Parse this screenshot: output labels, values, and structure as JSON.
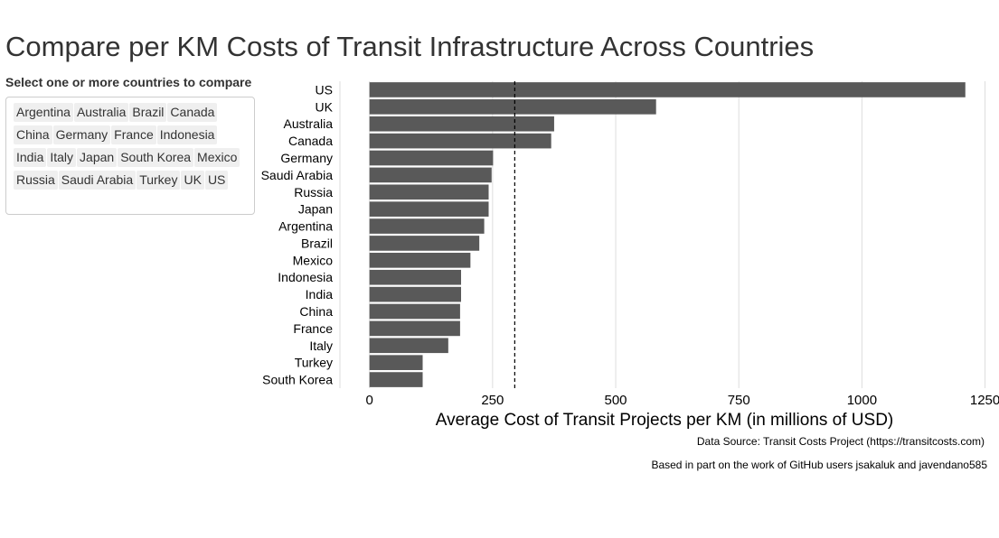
{
  "page": {
    "title": "Compare per KM Costs of Transit Infrastructure Across Countries",
    "select_label": "Select one or more countries to compare",
    "countries": [
      "Argentina",
      "Australia",
      "Brazil",
      "Canada",
      "China",
      "Germany",
      "France",
      "Indonesia",
      "India",
      "Italy",
      "Japan",
      "South Korea",
      "Mexico",
      "Russia",
      "Saudi Arabia",
      "Turkey",
      "UK",
      "US"
    ]
  },
  "chart_data": {
    "type": "bar",
    "orientation": "horizontal",
    "categories": [
      "US",
      "UK",
      "Australia",
      "Canada",
      "Germany",
      "Saudi Arabia",
      "Russia",
      "Japan",
      "Argentina",
      "Brazil",
      "Mexico",
      "Indonesia",
      "India",
      "China",
      "France",
      "Italy",
      "Turkey",
      "South Korea"
    ],
    "values": [
      1210,
      582,
      375,
      369,
      251,
      248,
      242,
      242,
      233,
      223,
      205,
      186,
      186,
      184,
      184,
      160,
      108,
      108
    ],
    "reference_line": 295,
    "xlabel": "Average Cost of Transit Projects per KM (in millions of USD)",
    "ylabel": "",
    "xlim": [
      -60,
      1260
    ],
    "x_ticks": [
      0,
      250,
      500,
      750,
      1000,
      1250
    ],
    "x_tick_labels": [
      "0",
      "250",
      "500",
      "750",
      "1000",
      "1250"
    ],
    "grid": "vertical major",
    "bar_color": "#595959",
    "legend": "none"
  },
  "notes": {
    "source": "Data Source: Transit Costs Project (https://transitcosts.com)",
    "credit": "Based in part on the work of GitHub users jsakaluk and javendano585"
  }
}
